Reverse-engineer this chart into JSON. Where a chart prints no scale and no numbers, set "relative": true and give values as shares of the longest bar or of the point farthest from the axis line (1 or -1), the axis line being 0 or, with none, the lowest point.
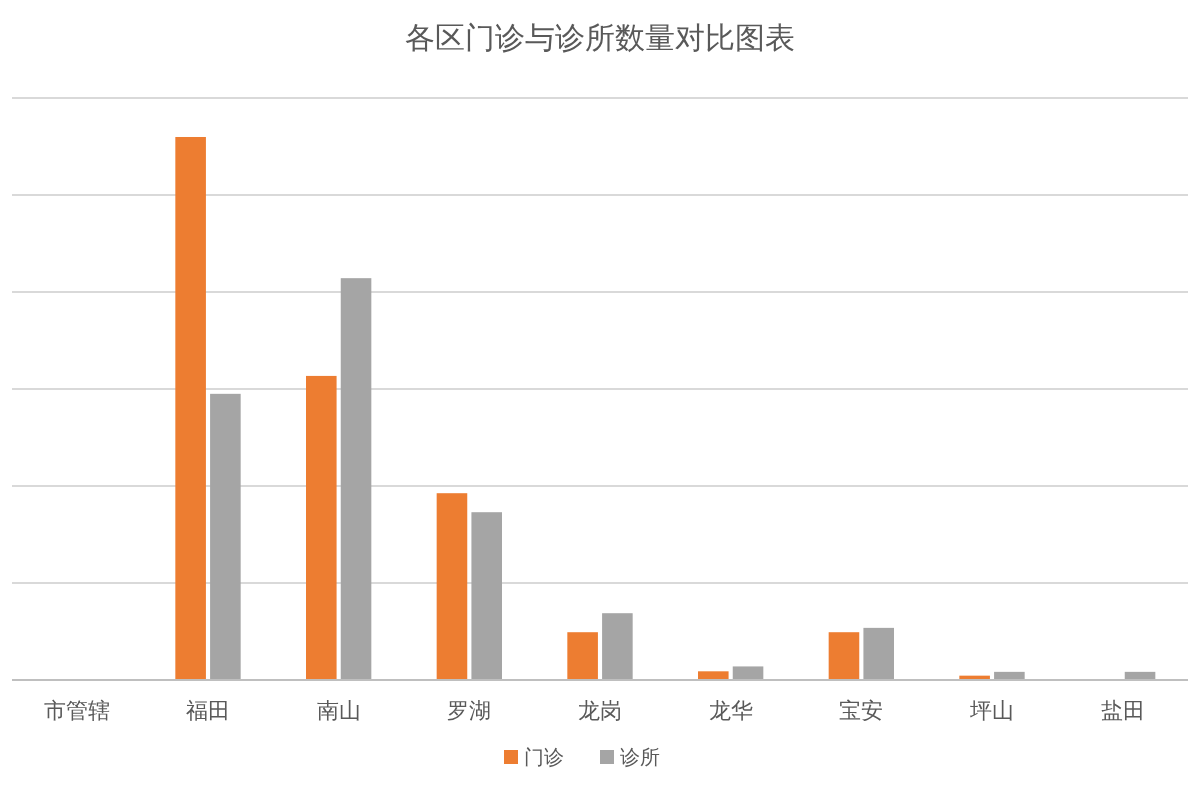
{
  "chart_data": {
    "type": "bar",
    "title": "各区门诊与诊所数量对比图表",
    "relative": true,
    "categories": [
      "市管辖",
      "福田",
      "南山",
      "罗湖",
      "龙岗",
      "龙华",
      "宝安",
      "坪山",
      "盐田"
    ],
    "series": [
      {
        "name": "门诊",
        "color": "#ed7d31",
        "values": [
          0,
          1,
          0.56,
          0.344,
          0.088,
          0.016,
          0.088,
          0.008,
          0
        ]
      },
      {
        "name": "诊所",
        "color": "#a5a5a5",
        "values": [
          0,
          0.527,
          0.74,
          0.309,
          0.123,
          0.025,
          0.096,
          0.015,
          0.015
        ]
      }
    ],
    "grid": true,
    "legend": "bottom"
  }
}
